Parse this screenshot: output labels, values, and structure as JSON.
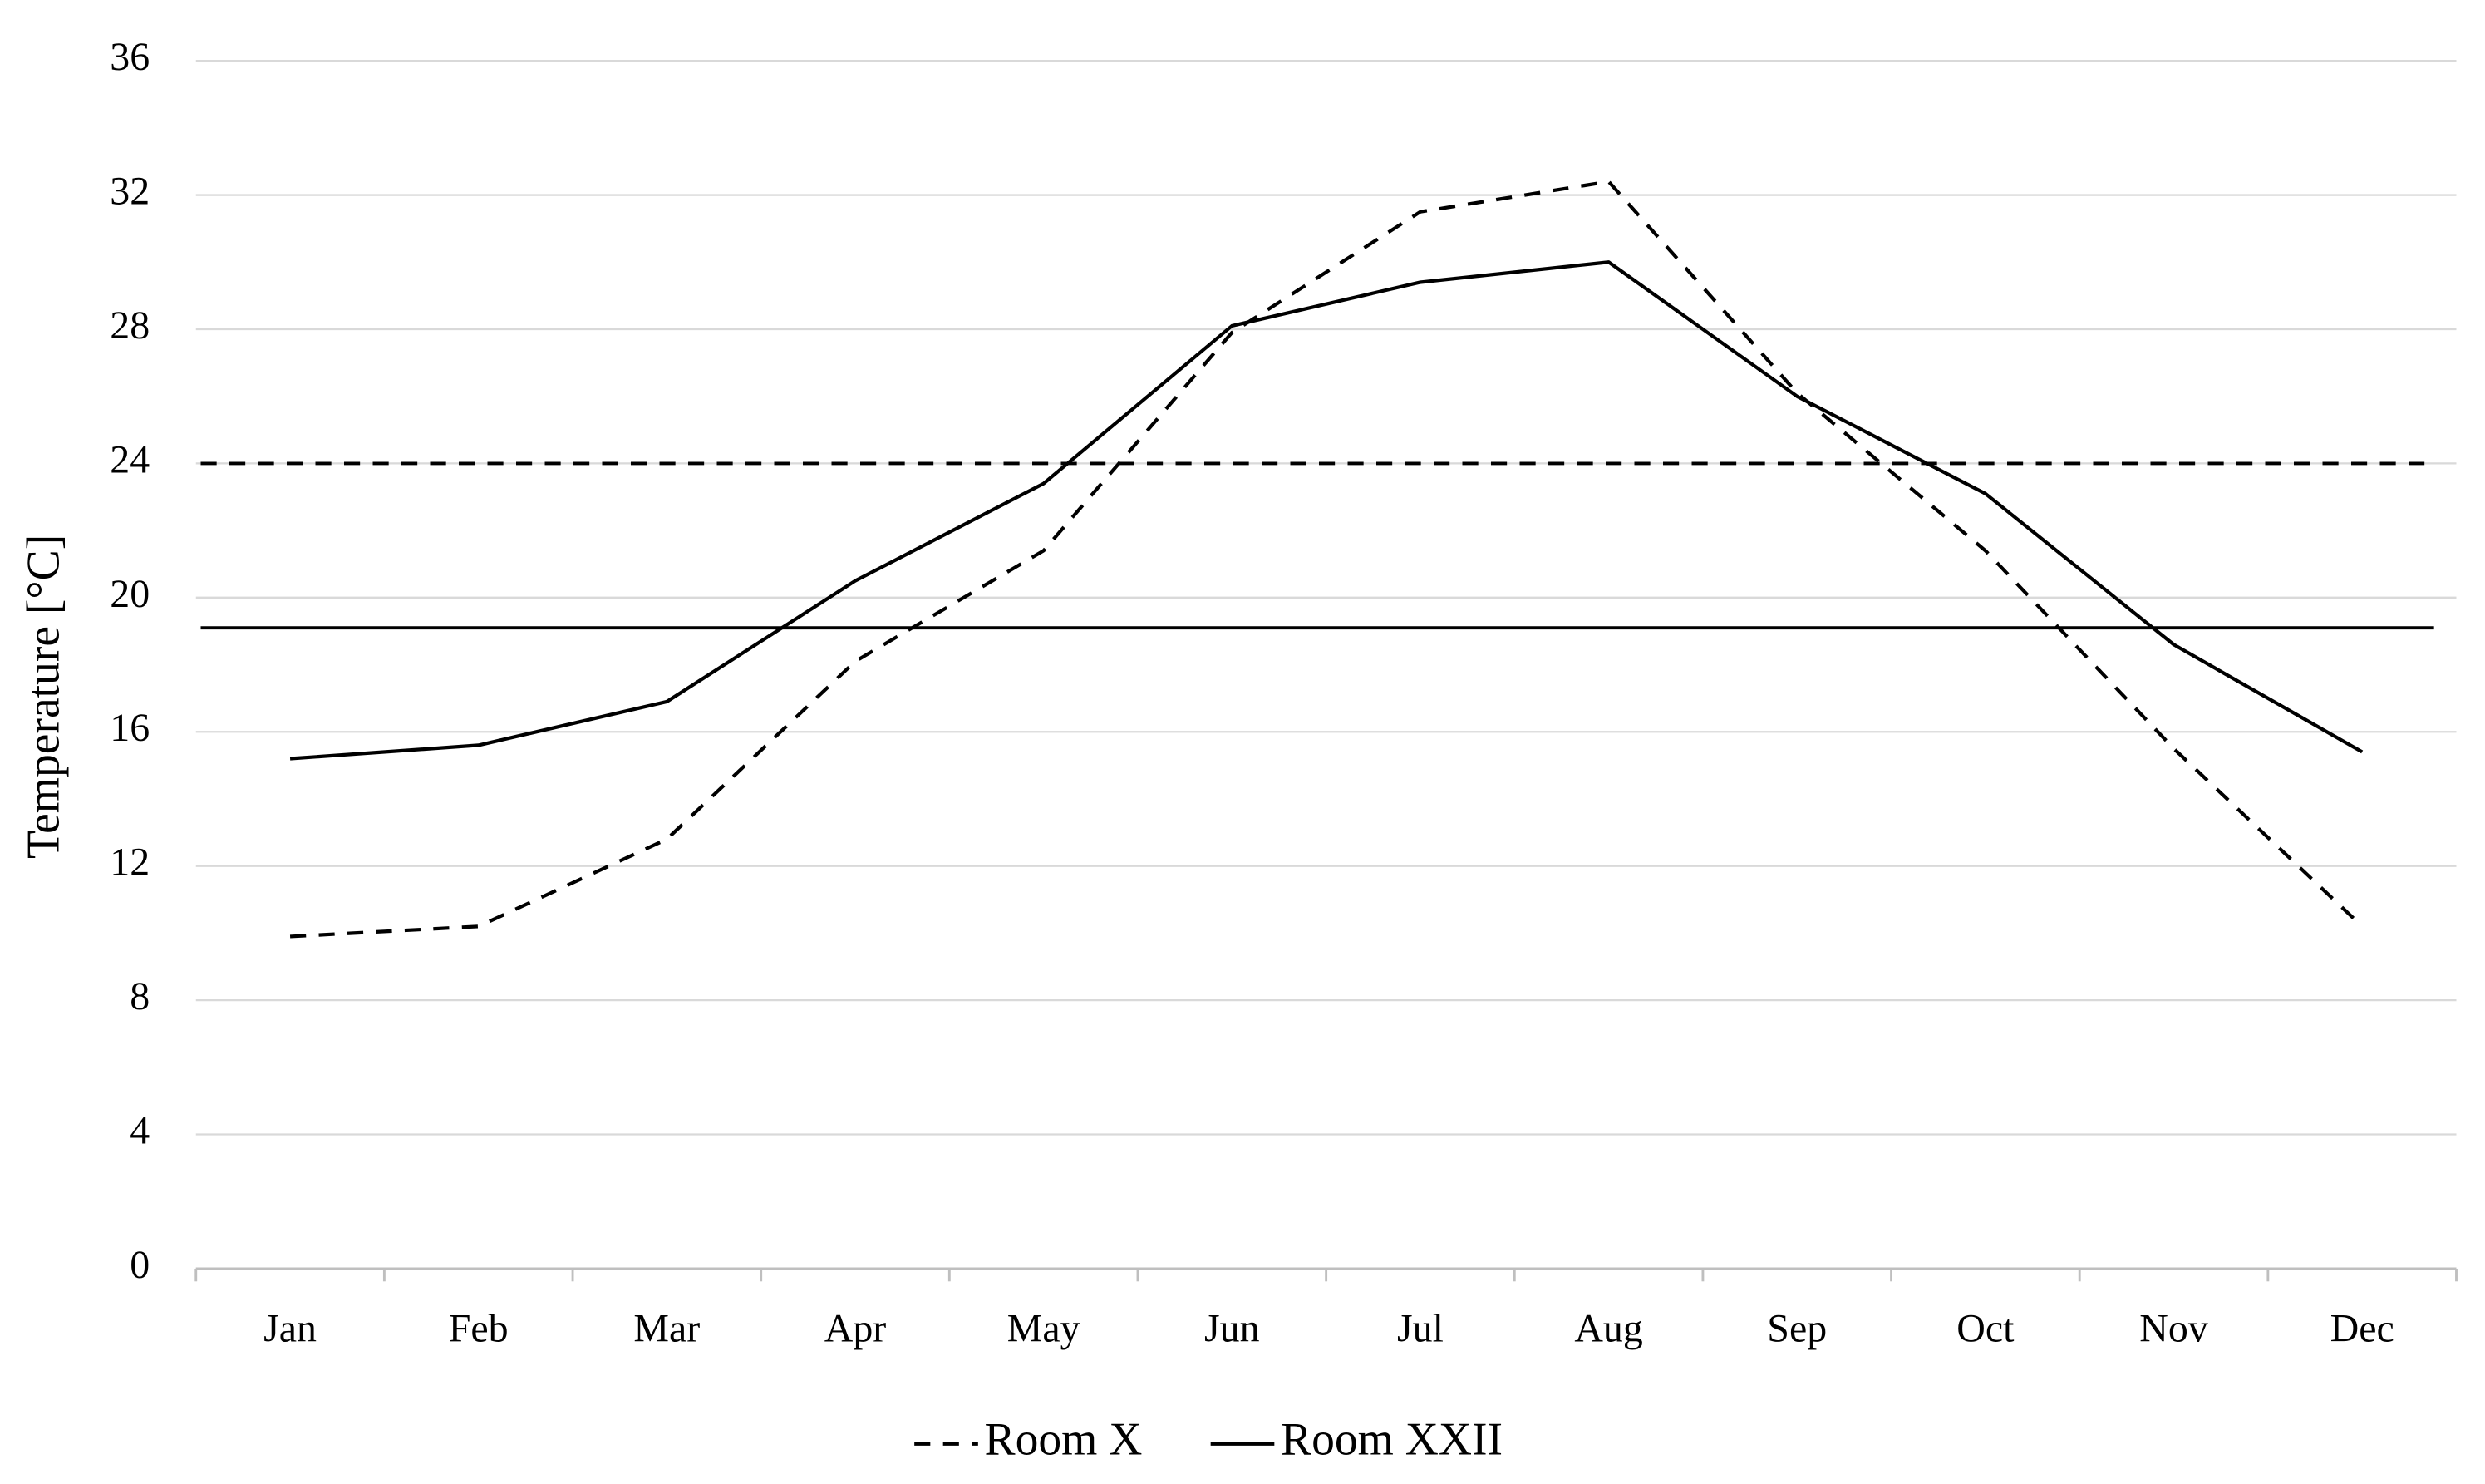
{
  "chart_data": {
    "type": "line",
    "y_label": "Temperature [°C]",
    "categories": [
      "Jan",
      "Feb",
      "Mar",
      "Apr",
      "May",
      "Jun",
      "Jul",
      "Aug",
      "Sep",
      "Oct",
      "Nov",
      "Dec"
    ],
    "series": [
      {
        "name": "Room X",
        "color": "#000000",
        "line_style": "dashed",
        "values": [
          9.9,
          10.2,
          12.8,
          18.1,
          21.4,
          27.9,
          31.5,
          32.4,
          26.1,
          21.4,
          15.5,
          10.2
        ]
      },
      {
        "name": "Room XXII",
        "color": "#000000",
        "line_style": "solid",
        "values": [
          15.2,
          15.6,
          16.9,
          20.5,
          23.4,
          28.1,
          29.4,
          30.0,
          26.0,
          23.1,
          18.6,
          15.4
        ]
      }
    ],
    "reference_lines": [
      {
        "value": 24,
        "color": "#000000",
        "line_style": "dashed"
      },
      {
        "value": 19.1,
        "color": "#000000",
        "line_style": "solid"
      }
    ],
    "ylim": [
      0,
      36
    ],
    "yticks": [
      0,
      4,
      8,
      12,
      16,
      20,
      24,
      28,
      32,
      36
    ],
    "grid": true,
    "legend": "bottom"
  }
}
